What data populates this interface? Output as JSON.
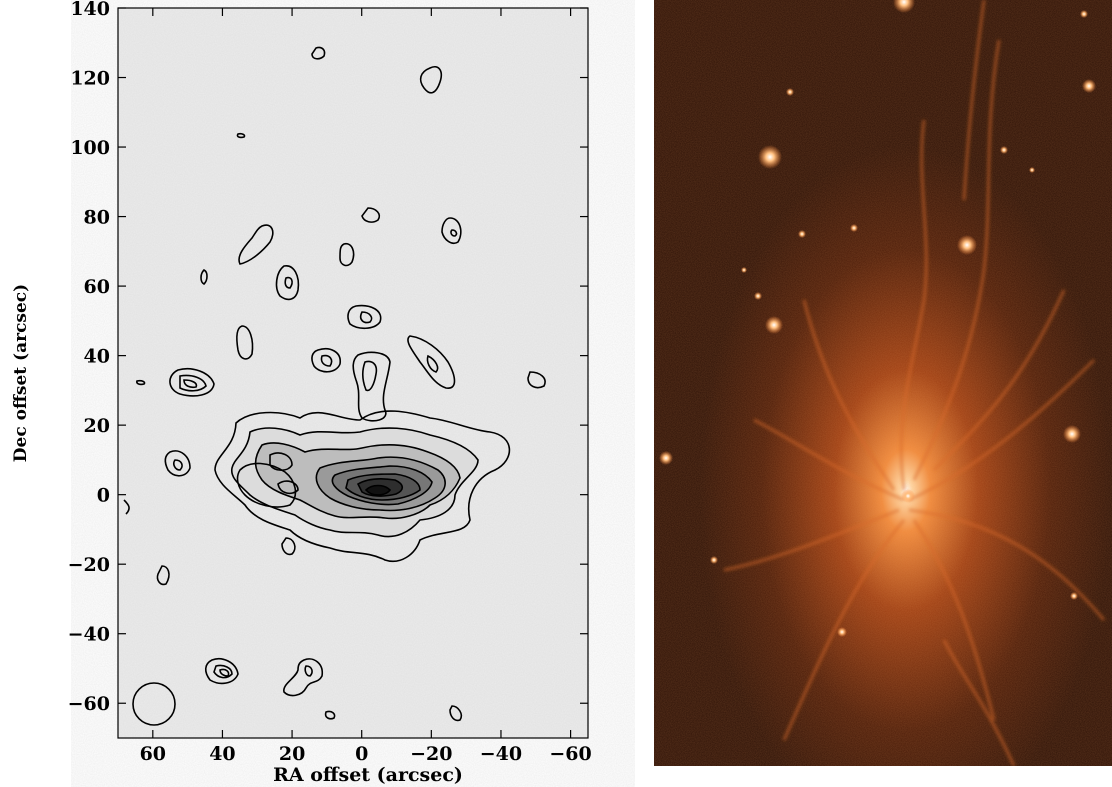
{
  "contour_plot": {
    "xlabel": "RA offset (arcsec)",
    "ylabel": "Dec offset (arcsec)",
    "xlim": [
      70,
      -65
    ],
    "ylim": [
      -70,
      140
    ],
    "x_ticks": [
      "60",
      "40",
      "20",
      "0",
      "−20",
      "−40",
      "−60"
    ],
    "x_tick_values": [
      60,
      40,
      20,
      0,
      -20,
      -40,
      -60
    ],
    "y_ticks": [
      "140",
      "120",
      "100",
      "80",
      "60",
      "40",
      "20",
      "0",
      "−20",
      "−40",
      "−60"
    ],
    "y_tick_values": [
      140,
      120,
      100,
      80,
      60,
      40,
      20,
      0,
      -20,
      -40,
      -60
    ],
    "background_color": "#ececec",
    "line_color": "#000000"
  },
  "chart_data": {
    "type": "heatmap",
    "xlabel": "RA offset (arcsec)",
    "ylabel": "Dec offset (arcsec)",
    "xlim": [
      70,
      -65
    ],
    "ylim": [
      -70,
      140
    ],
    "peak": [
      3,
      -2
    ],
    "beam": {
      "x": 62,
      "y": -60,
      "radius": 6
    }
  },
  "optical_image": {
    "background_color": "#2a0f05",
    "glow_color": "#ff8a3a",
    "core_color": "#ffffff"
  }
}
